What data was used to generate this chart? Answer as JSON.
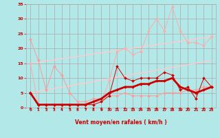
{
  "background_color": "#b2e8e8",
  "grid_color": "#aaaaaa",
  "xlabel": "Vent moyen/en rafales ( km/h )",
  "xlabel_color": "#cc0000",
  "tick_color": "#cc0000",
  "xlim": [
    -0.5,
    23.5
  ],
  "ylim": [
    0,
    35
  ],
  "yticks": [
    0,
    5,
    10,
    15,
    20,
    25,
    30,
    35
  ],
  "xticks": [
    0,
    1,
    2,
    3,
    4,
    5,
    6,
    7,
    8,
    9,
    10,
    11,
    12,
    13,
    14,
    15,
    16,
    17,
    18,
    19,
    20,
    21,
    22,
    23
  ],
  "line1_x": [
    0,
    1,
    2,
    3,
    4,
    5,
    6,
    7,
    8,
    9,
    10,
    11,
    12,
    13,
    14,
    15,
    16,
    17,
    18,
    19,
    20,
    21,
    22,
    23
  ],
  "line1_y": [
    23,
    16,
    6,
    14,
    11,
    5,
    2,
    2,
    3,
    3,
    4,
    4,
    5,
    4,
    4,
    4,
    4,
    5,
    5,
    5,
    6,
    6,
    7,
    7
  ],
  "line1_color": "#ff9999",
  "line2_x": [
    0,
    1,
    2,
    3,
    4,
    5,
    6,
    7,
    8,
    9,
    10,
    11,
    12,
    13,
    14,
    15,
    16,
    17,
    18,
    19,
    20,
    21,
    22,
    23
  ],
  "line2_y": [
    15,
    1,
    1,
    1,
    1,
    1,
    1,
    1,
    2,
    2,
    9,
    19,
    20,
    18,
    19,
    26,
    30,
    26,
    34,
    26,
    22,
    22,
    21,
    24
  ],
  "line2_color": "#ffaaaa",
  "line3_x": [
    0,
    1,
    2,
    3,
    4,
    5,
    6,
    7,
    8,
    9,
    10,
    11,
    12,
    13,
    14,
    15,
    16,
    17,
    18,
    19,
    20,
    21,
    22,
    23
  ],
  "line3_y": [
    5,
    1,
    1,
    1,
    1,
    1,
    1,
    1,
    1,
    2,
    4,
    14,
    10,
    9,
    10,
    10,
    10,
    12,
    11,
    6,
    7,
    3,
    10,
    7
  ],
  "line3_color": "#cc0000",
  "line4_x": [
    0,
    1,
    2,
    3,
    4,
    5,
    6,
    7,
    8,
    9,
    10,
    11,
    12,
    13,
    14,
    15,
    16,
    17,
    18,
    19,
    20,
    21,
    22,
    23
  ],
  "line4_y": [
    5,
    1,
    1,
    1,
    1,
    1,
    1,
    1,
    2,
    3,
    5,
    6,
    7,
    7,
    8,
    8,
    9,
    9,
    10,
    7,
    6,
    5,
    6,
    7
  ],
  "line4_color": "#cc0000",
  "line4_linewidth": 2.0,
  "line5_x": [
    0,
    23
  ],
  "line5_y": [
    15,
    24
  ],
  "line5_color": "#ffcccc",
  "line5_linewidth": 1.0,
  "line6_x": [
    0,
    23
  ],
  "line6_y": [
    5,
    16
  ],
  "line6_color": "#ffcccc",
  "line6_linewidth": 1.0,
  "arrow_color": "#cc0000",
  "marker": "D",
  "markersize": 2.0
}
